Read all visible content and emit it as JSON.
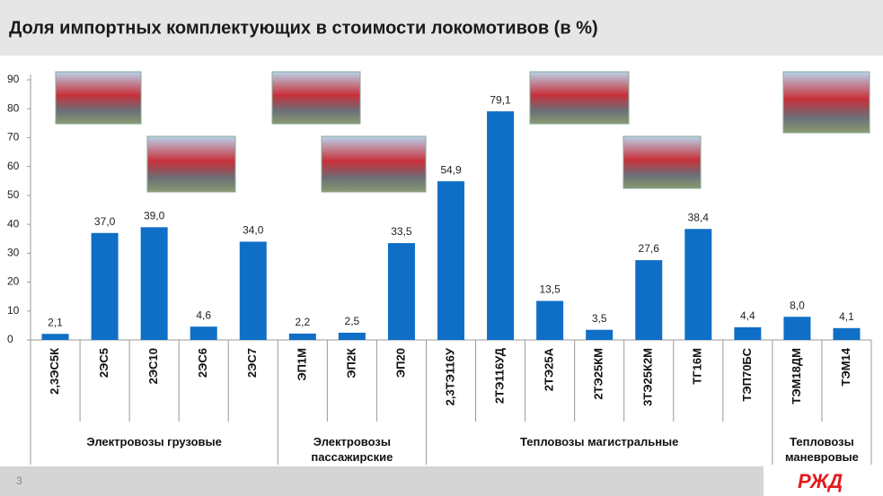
{
  "chart_data": {
    "type": "bar",
    "title": "Доля импортных комплектующих в стоимости локомотивов (в %)",
    "categories": [
      "2,3ЭС5К",
      "2ЭС5",
      "2ЭС10",
      "2ЭС6",
      "2ЭС7",
      "ЭП1М",
      "ЭП2К",
      "ЭП20",
      "2,3ТЭ116У",
      "2ТЭ116УД",
      "2ТЭ25А",
      "2ТЭ25КМ",
      "3ТЭ25К2М",
      "ТГ16М",
      "ТЭП70БС",
      "ТЭМ18ДМ",
      "ТЭМ14"
    ],
    "values": [
      2.1,
      37.0,
      39.0,
      4.6,
      34.0,
      2.2,
      2.5,
      33.5,
      54.9,
      79.1,
      13.5,
      3.5,
      27.6,
      38.4,
      4.4,
      8.0,
      4.1
    ],
    "value_labels": [
      "2,1",
      "37,0",
      "39,0",
      "4,6",
      "34,0",
      "2,2",
      "2,5",
      "33,5",
      "54,9",
      "79,1",
      "13,5",
      "3,5",
      "27,6",
      "38,4",
      "4,4",
      "8,0",
      "4,1"
    ],
    "color": "#0f6fc6",
    "ylim": [
      0,
      90
    ],
    "yticks": [
      0,
      10,
      20,
      30,
      40,
      50,
      60,
      70,
      80,
      90
    ],
    "grid": false,
    "groups": [
      "Электровозы грузовые",
      "Электровозы пассажирские",
      "Тепловозы магистральные",
      "Тепловозы маневровые"
    ]
  },
  "footer": {
    "page": "3",
    "logo": "РЖД"
  }
}
